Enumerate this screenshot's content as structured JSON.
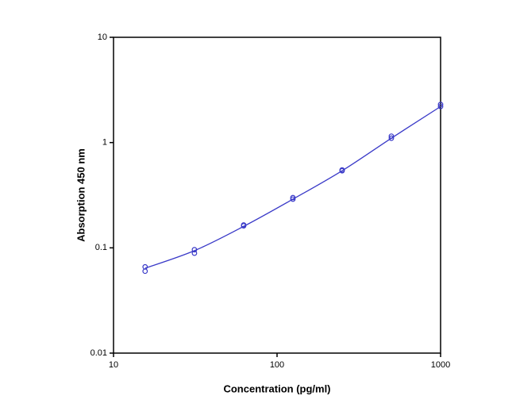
{
  "chart_data": {
    "type": "scatter",
    "x_label": "Concentration (pg/ml)",
    "y_label": "Absorption 450 nm",
    "xscale": "log",
    "yscale": "log",
    "xlim": [
      10,
      1000
    ],
    "ylim": [
      0.01,
      10
    ],
    "xticks": [
      10,
      100,
      1000
    ],
    "yticks": [
      0.01,
      0.1,
      1,
      10
    ],
    "series": [
      {
        "mode": "markers",
        "color": "#3a3ac8",
        "x": [
          15.6,
          15.6,
          31.25,
          31.25,
          62.5,
          62.5,
          125,
          125,
          250,
          250,
          500,
          500,
          1000,
          1000
        ],
        "values": [
          0.066,
          0.06,
          0.096,
          0.089,
          0.165,
          0.162,
          0.3,
          0.29,
          0.55,
          0.54,
          1.15,
          1.1,
          2.3,
          2.2
        ]
      },
      {
        "mode": "line",
        "color": "#3a3ac8",
        "x": [
          15.6,
          31.25,
          62.5,
          125,
          250,
          500,
          1000
        ],
        "values": [
          0.064,
          0.094,
          0.16,
          0.29,
          0.54,
          1.1,
          2.2
        ]
      }
    ]
  }
}
